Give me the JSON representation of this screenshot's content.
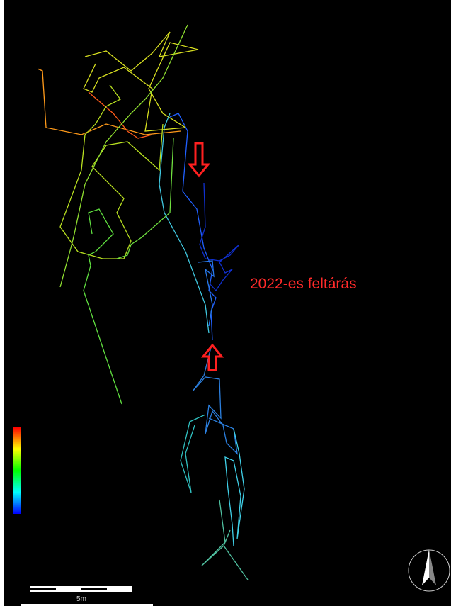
{
  "annotation": "2022-es feltárás",
  "scale_label": "5m"
}
